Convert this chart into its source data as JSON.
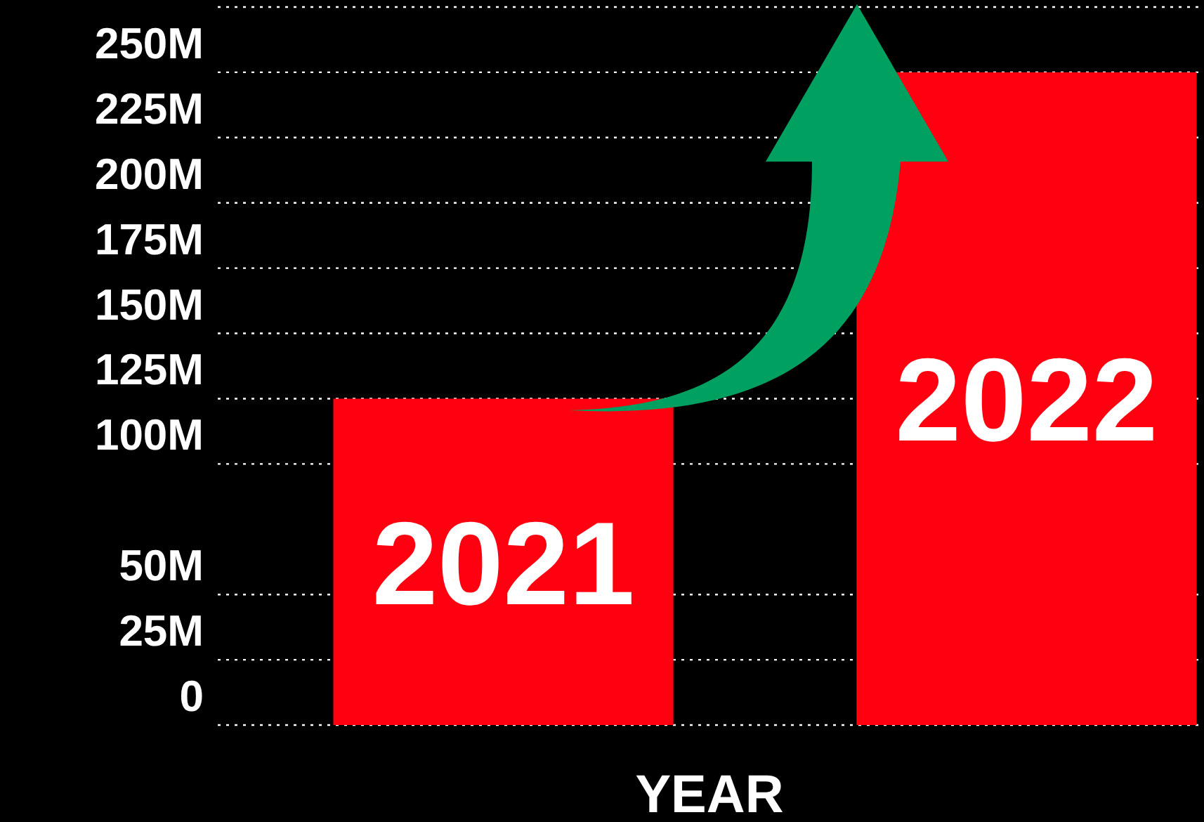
{
  "chart_data": {
    "type": "bar",
    "xlabel": "YEAR",
    "categories": [
      "2021",
      "2022"
    ],
    "values": [
      125,
      250
    ],
    "color": "#ff0010",
    "ylim": [
      0,
      275
    ],
    "yticks": [
      {
        "value": 0,
        "label": "0"
      },
      {
        "value": 25,
        "label": "25M"
      },
      {
        "value": 50,
        "label": "50M"
      },
      {
        "value": 100,
        "label": "100M"
      },
      {
        "value": 125,
        "label": "125M"
      },
      {
        "value": 150,
        "label": "150M"
      },
      {
        "value": 175,
        "label": "175M"
      },
      {
        "value": 200,
        "label": "200M"
      },
      {
        "value": 225,
        "label": "225M"
      },
      {
        "value": 250,
        "label": "250M"
      },
      {
        "value": 275,
        "label": null
      }
    ],
    "grid": "y"
  }
}
